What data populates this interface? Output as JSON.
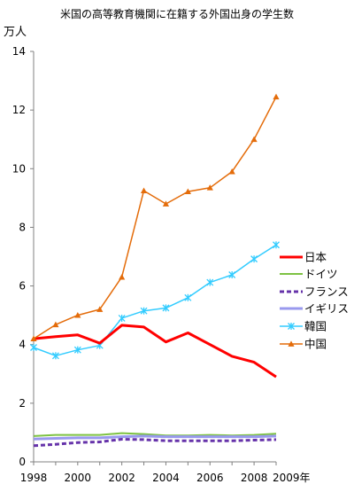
{
  "chart_data": {
    "type": "line",
    "title": "米国の高等教育機関に在籍する外国出身の学生数",
    "ylabel": "万人",
    "xlabel_suffix": "年",
    "x": [
      1998,
      1999,
      2000,
      2001,
      2002,
      2003,
      2004,
      2005,
      2006,
      2007,
      2008,
      2009
    ],
    "xlim": [
      1998,
      2009
    ],
    "ylim": [
      0,
      14
    ],
    "x_ticks": [
      "1998",
      "2000",
      "2002",
      "2004",
      "2006",
      "2008",
      "2009年"
    ],
    "y_ticks": [
      "0",
      "2",
      "4",
      "6",
      "8",
      "10",
      "12",
      "14"
    ],
    "grid": false,
    "legend": "right",
    "series": [
      {
        "name": "日本",
        "color": "#ff0000",
        "style": "solid",
        "marker": "none",
        "values": [
          4.2,
          4.27,
          4.33,
          4.05,
          4.66,
          4.6,
          4.09,
          4.4,
          4.0,
          3.6,
          3.4,
          2.9
        ]
      },
      {
        "name": "ドイツ",
        "color": "#7dc242",
        "style": "solid",
        "marker": "none",
        "values": [
          0.88,
          0.92,
          0.92,
          0.92,
          0.98,
          0.95,
          0.9,
          0.9,
          0.92,
          0.9,
          0.92,
          0.96
        ]
      },
      {
        "name": "フランス",
        "color": "#6633aa",
        "style": "dashed",
        "marker": "none",
        "values": [
          0.55,
          0.6,
          0.66,
          0.68,
          0.77,
          0.76,
          0.72,
          0.72,
          0.72,
          0.72,
          0.74,
          0.76
        ]
      },
      {
        "name": "イギリス",
        "color": "#9999ee",
        "style": "solid",
        "marker": "none",
        "values": [
          0.78,
          0.8,
          0.82,
          0.82,
          0.86,
          0.88,
          0.86,
          0.86,
          0.86,
          0.86,
          0.86,
          0.88
        ]
      },
      {
        "name": "韓国",
        "color": "#33ccff",
        "style": "solid",
        "marker": "star",
        "values": [
          3.9,
          3.62,
          3.82,
          3.97,
          4.9,
          5.15,
          5.25,
          5.6,
          6.12,
          6.38,
          6.92,
          7.4
        ]
      },
      {
        "name": "中国",
        "color": "#e46c0a",
        "style": "solid",
        "marker": "triangle",
        "values": [
          4.2,
          4.68,
          5.0,
          5.2,
          6.3,
          9.25,
          8.8,
          9.22,
          9.35,
          9.9,
          11.0,
          12.45
        ]
      }
    ]
  }
}
